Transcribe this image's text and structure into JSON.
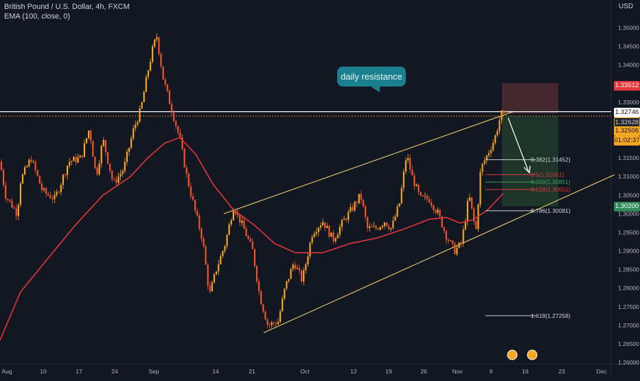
{
  "header": {
    "symbol_line": "British Pound / U.S. Dollar, 4h, FXCM",
    "indicator_line": "EMA (100, close, 0)",
    "currency": "USD"
  },
  "colors": {
    "background": "#131722",
    "candle_up": "#f5a623",
    "candle_down": "#f2542d",
    "ema": "#e5373b",
    "channel": "#d8c06a",
    "resistance": "#ffffff",
    "stop_zone": "#4a2a30",
    "target_zone": "#1f3a2a",
    "callout": "#1a7f8f"
  },
  "price_axis": {
    "ticks": [
      "1.35500",
      "1.35000",
      "1.34500",
      "1.34000",
      "1.33500",
      "1.33000",
      "1.32500",
      "1.32000",
      "1.31500",
      "1.31000",
      "1.30500",
      "1.30000",
      "1.29500",
      "1.29000",
      "1.28500",
      "1.28000",
      "1.27500",
      "1.27000",
      "1.26500",
      "1.26000"
    ],
    "tags": {
      "stop": "1.33512",
      "resistance": "1.32746",
      "dotted": "1.32628",
      "current": "1.32506",
      "countdown": "01:02:37",
      "target": "1.30200"
    }
  },
  "time_axis": {
    "labels": [
      "Aug",
      "10",
      "17",
      "24",
      "Sep",
      "14",
      "21",
      "Oct",
      "12",
      "19",
      "26",
      "Nov",
      "9",
      "16",
      "23",
      "Dec"
    ]
  },
  "annotations": {
    "callout": "daily resistance",
    "fib_levels": [
      "0.382(1.31452)",
      "0.5(1.31051)",
      "0.559(1.30851)",
      "0.618(1.30651)",
      "0.786(1.30081)",
      "1.618(1.27258)"
    ]
  },
  "chart_data": {
    "type": "candlestick",
    "title": "British Pound / U.S. Dollar, 4h, FXCM",
    "timeframe": "4h",
    "ylim": [
      1.26,
      1.356
    ],
    "x_labels": [
      "Aug",
      "10",
      "17",
      "24",
      "Sep",
      "14",
      "21",
      "Oct",
      "12",
      "19",
      "26",
      "Nov",
      "9",
      "16",
      "23",
      "Dec"
    ],
    "price_path": [
      [
        "Aug",
        1.31
      ],
      [
        "10",
        1.306
      ],
      [
        "17",
        1.324
      ],
      [
        "24",
        1.315
      ],
      [
        "Sep",
        1.347
      ],
      [
        "14",
        1.28
      ],
      [
        "21",
        1.27
      ],
      [
        "Oct",
        1.29
      ],
      [
        "12",
        1.305
      ],
      [
        "19",
        1.317
      ],
      [
        "26",
        1.298
      ],
      [
        "Nov",
        1.296
      ],
      [
        "9",
        1.326
      ]
    ],
    "ema_path": [
      [
        "Aug",
        1.272
      ],
      [
        "17",
        1.3
      ],
      [
        "24",
        1.308
      ],
      [
        "Sep",
        1.32
      ],
      [
        "14",
        1.3
      ],
      [
        "21",
        1.295
      ],
      [
        "Oct",
        1.29
      ],
      [
        "12",
        1.292
      ],
      [
        "19",
        1.296
      ],
      [
        "26",
        1.3
      ],
      [
        "Nov",
        1.296
      ],
      [
        "9",
        1.304
      ]
    ],
    "levels": {
      "daily_resistance": 1.32746,
      "stop_loss": 1.33512,
      "take_profit": 1.302,
      "last_price": 1.32506
    },
    "fibonacci": [
      {
        "ratio": "0.382",
        "price": 1.31452
      },
      {
        "ratio": "0.5",
        "price": 1.31051
      },
      {
        "ratio": "0.559",
        "price": 1.30851
      },
      {
        "ratio": "0.618",
        "price": 1.30651
      },
      {
        "ratio": "0.786",
        "price": 1.30081
      },
      {
        "ratio": "1.618",
        "price": 1.27258
      }
    ],
    "channel": {
      "upper": [
        [
          "14",
          1.3
        ],
        [
          "9",
          1.327
        ]
      ],
      "lower": [
        [
          "21",
          1.268
        ],
        [
          "Dec",
          1.31
        ]
      ]
    },
    "grid": false
  }
}
